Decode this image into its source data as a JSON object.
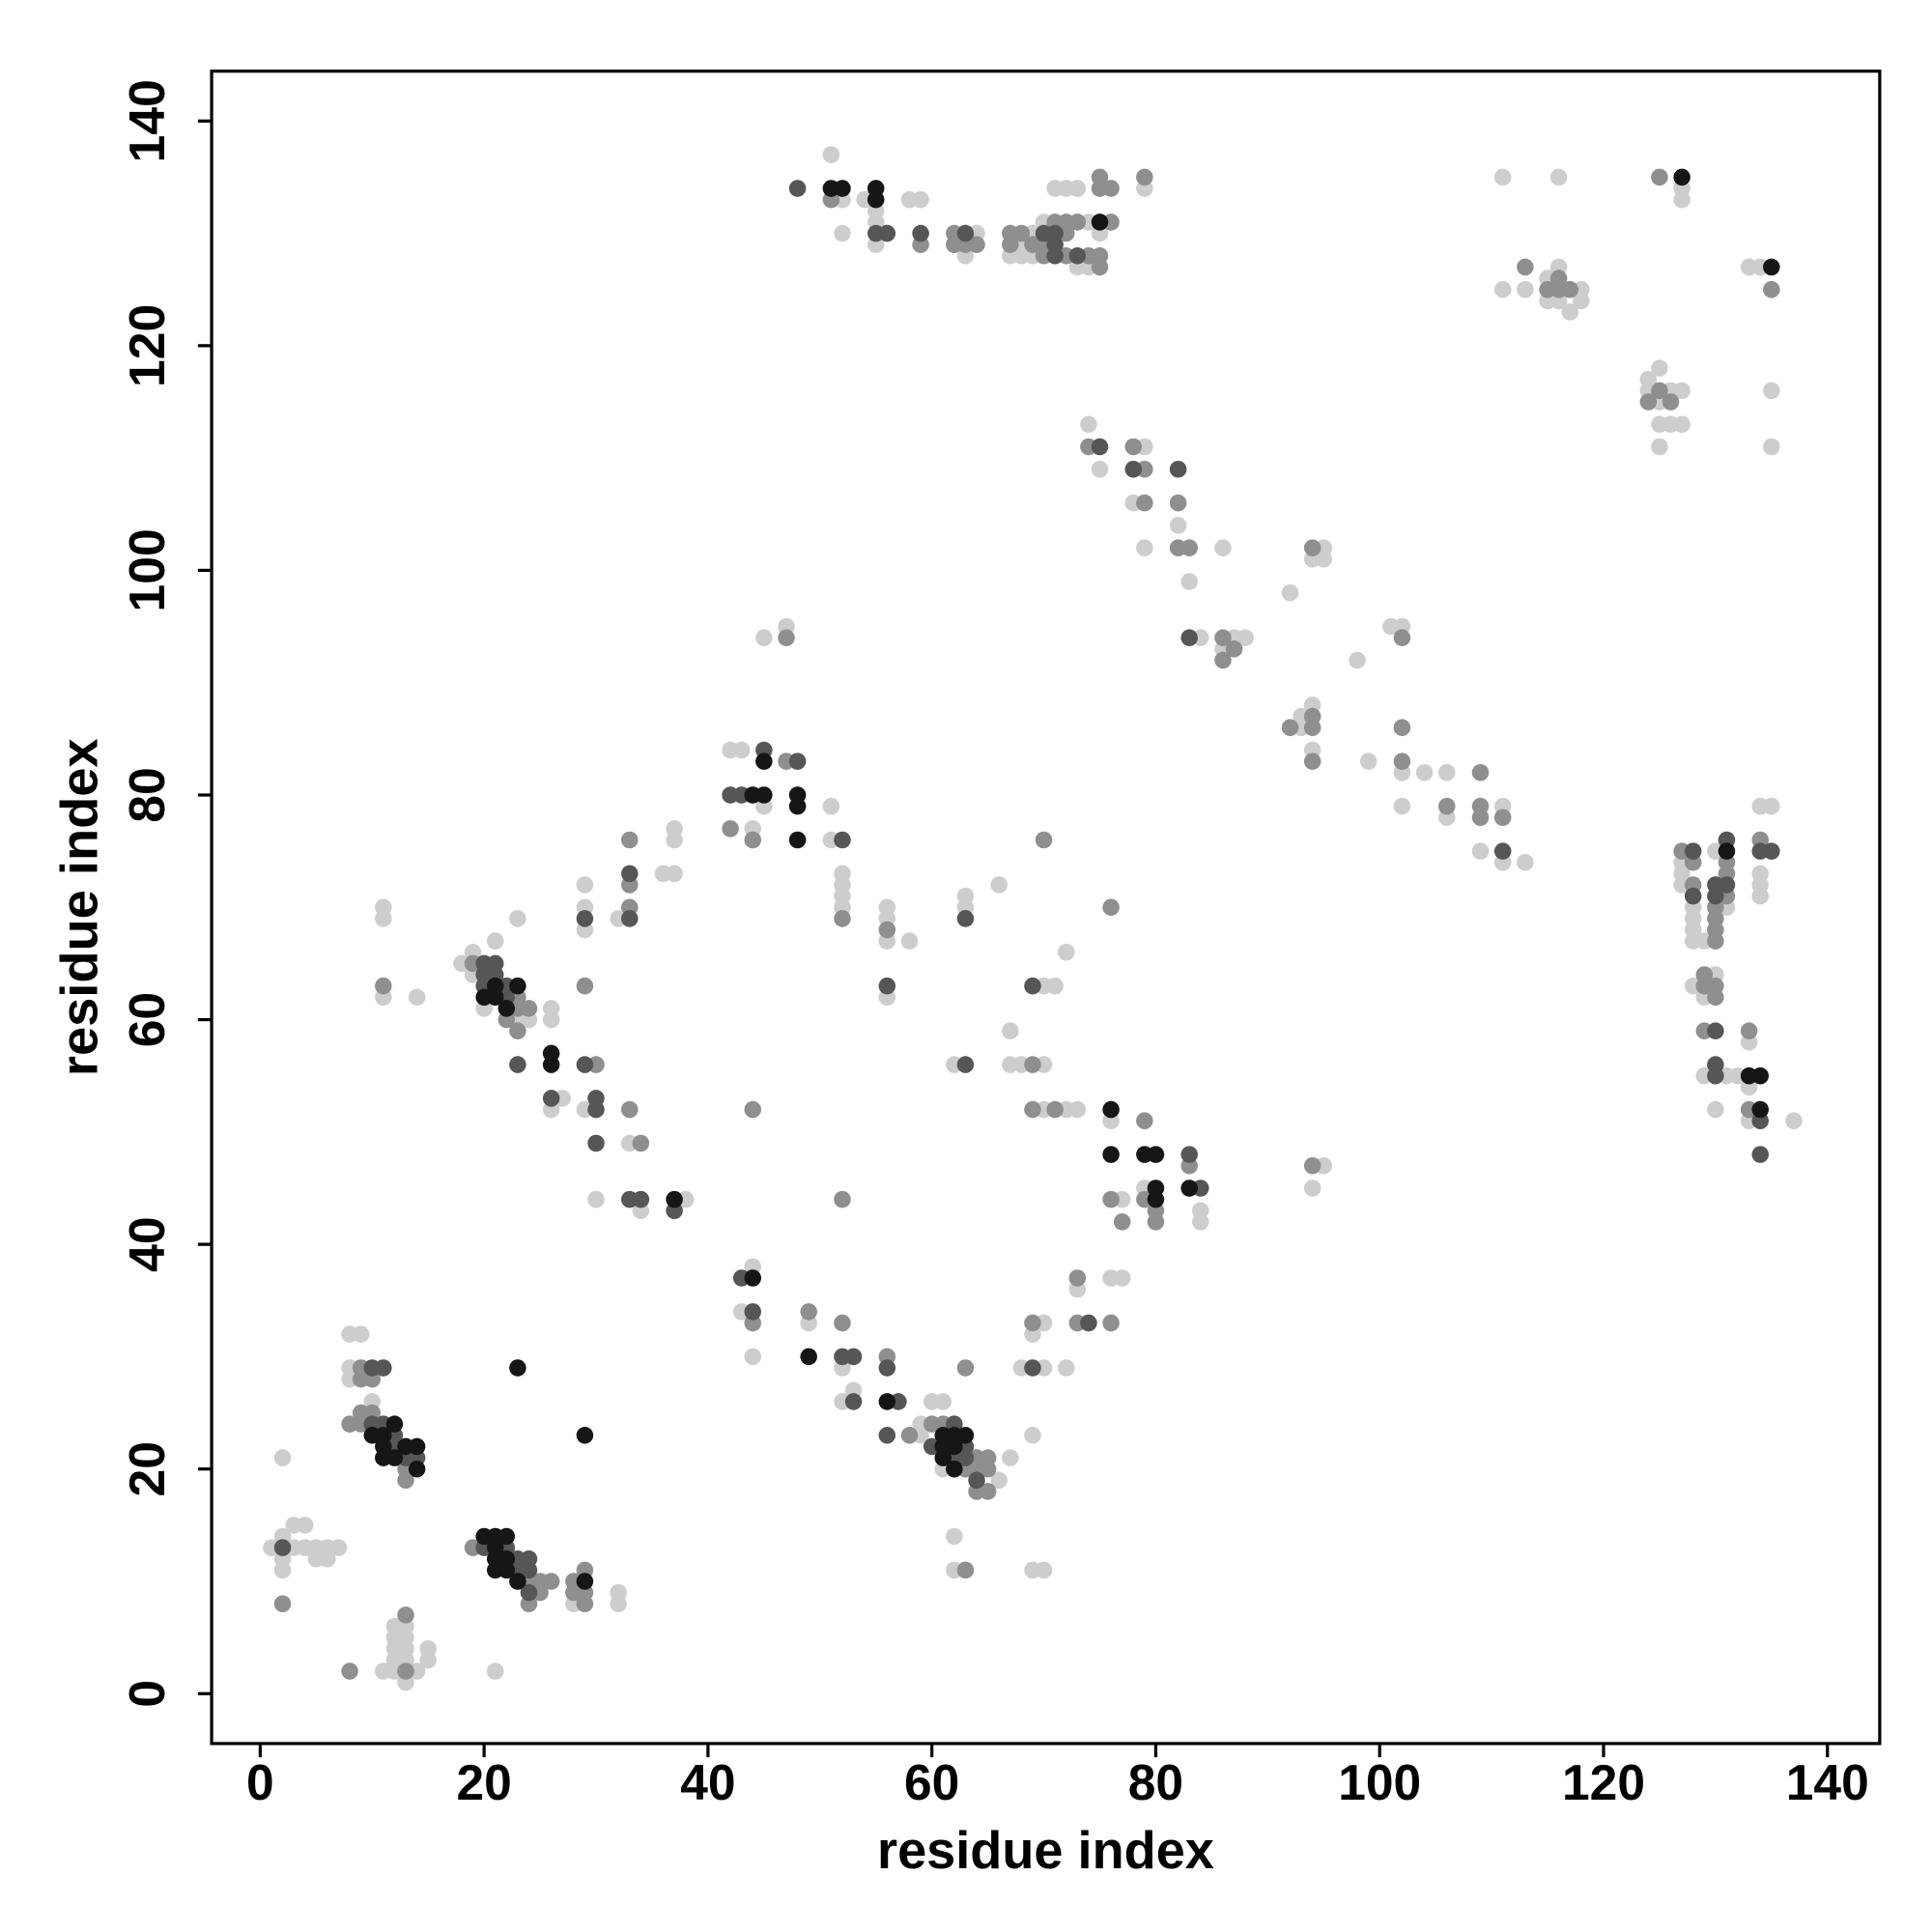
{
  "chart_data": {
    "type": "scatter",
    "xlabel": "residue index",
    "ylabel": "residue index",
    "xlim": [
      -4.34,
      144.67
    ],
    "ylim": [
      -4.44,
      144.44
    ],
    "xticks": [
      0,
      20,
      40,
      60,
      80,
      100,
      120,
      140
    ],
    "yticks": [
      0,
      20,
      40,
      60,
      80,
      100,
      120,
      140
    ],
    "series": [
      {
        "color": "#cdcdcd",
        "x": [
          1,
          2,
          2,
          3,
          4,
          3,
          4,
          5,
          6,
          5,
          6,
          7,
          2,
          2,
          8,
          9,
          8,
          8,
          10,
          11,
          12,
          12,
          12,
          12,
          12,
          13,
          13,
          13,
          13,
          13,
          14,
          15,
          15,
          21,
          28,
          32,
          32,
          18,
          19,
          19,
          21,
          20,
          23,
          23,
          24,
          26,
          26,
          26,
          27,
          29,
          30,
          33,
          34,
          38,
          11,
          11,
          11,
          14,
          29,
          29,
          29,
          32,
          36,
          37,
          37,
          37,
          42,
          43,
          45,
          44,
          45,
          47,
          51,
          51,
          52,
          52,
          52,
          52,
          44,
          43,
          44,
          49,
          52,
          53,
          52,
          59,
          59,
          60,
          61,
          66,
          61,
          62,
          62,
          67,
          68,
          69,
          70,
          70,
          72,
          69,
          69,
          70,
          73,
          76,
          77,
          76,
          77,
          79,
          84,
          84,
          95,
          94,
          62,
          67,
          67,
          68,
          70,
          70,
          72,
          73,
          70,
          71,
          72,
          66,
          63,
          63,
          56,
          56,
          56,
          58,
          56,
          51,
          52,
          52,
          54,
          55,
          55,
          55,
          58,
          59,
          63,
          64,
          67,
          68,
          68,
          69,
          69,
          70,
          71,
          72,
          73,
          73,
          74,
          74,
          79,
          75,
          74,
          75,
          78,
          79,
          79,
          82,
          83,
          84,
          86,
          86,
          87,
          88,
          92,
          94,
          95,
          95,
          98,
          93,
          94,
          93,
          94,
          99,
          101,
          102,
          102,
          102,
          104,
          106,
          106,
          109,
          111,
          111,
          113,
          111,
          116,
          111,
          113,
          115,
          115,
          116,
          116,
          117,
          118,
          118,
          127,
          127,
          133,
          134,
          135,
          135,
          124,
          125,
          124,
          125,
          126,
          125,
          126,
          127,
          127,
          125,
          127,
          127,
          127,
          128,
          128,
          128,
          128,
          129,
          130,
          131,
          128,
          129,
          130,
          129,
          130,
          131,
          132,
          133,
          133,
          133,
          137,
          134,
          135,
          134,
          134,
          134
        ],
        "values": [
          13,
          14,
          12,
          15,
          15,
          13,
          13,
          13,
          13,
          12,
          12,
          13,
          11,
          21,
          32,
          32,
          29,
          28,
          26,
          2,
          2,
          3,
          4,
          5,
          6,
          6,
          5,
          4,
          3,
          1,
          2,
          3,
          4,
          2,
          8,
          9,
          8,
          65,
          66,
          64,
          67,
          61,
          60,
          69,
          60,
          61,
          60,
          52,
          53,
          52,
          44,
          49,
          43,
          44,
          70,
          69,
          62,
          62,
          72,
          70,
          68,
          69,
          73,
          73,
          77,
          76,
          84,
          84,
          79,
          77,
          94,
          95,
          79,
          76,
          73,
          72,
          71,
          70,
          38,
          34,
          30,
          33,
          29,
          27,
          26,
          24,
          23,
          26,
          26,
          19,
          20,
          14,
          11,
          21,
          29,
          32,
          33,
          29,
          29,
          23,
          11,
          11,
          36,
          37,
          37,
          51,
          44,
          45,
          43,
          42,
          47,
          45,
          56,
          59,
          56,
          56,
          56,
          52,
          52,
          52,
          63,
          63,
          66,
          72,
          71,
          70,
          70,
          69,
          67,
          67,
          62,
          137,
          133,
          130,
          133,
          132,
          131,
          129,
          133,
          133,
          128,
          130,
          128,
          129,
          128,
          130,
          128,
          131,
          134,
          134,
          134,
          127,
          131,
          127,
          134,
          130,
          113,
          109,
          106,
          111,
          102,
          104,
          99,
          94,
          102,
          93,
          94,
          94,
          98,
          101,
          102,
          101,
          92,
          87,
          88,
          86,
          84,
          83,
          95,
          95,
          82,
          79,
          82,
          82,
          78,
          75,
          79,
          74,
          74,
          135,
          135,
          125,
          125,
          126,
          124,
          127,
          124,
          123,
          125,
          124,
          134,
          133,
          127,
          127,
          116,
          111,
          117,
          118,
          116,
          115,
          116,
          113,
          113,
          116,
          113,
          111,
          74,
          73,
          72,
          70,
          69,
          68,
          67,
          67,
          75,
          70,
          63,
          62,
          64,
          55,
          52,
          55,
          55,
          58,
          54,
          51,
          51,
          79,
          79,
          73,
          72,
          71
        ]
      },
      {
        "color": "#8f8f8f",
        "x": [
          2,
          9,
          9,
          10,
          8,
          9,
          9,
          10,
          13,
          13,
          8,
          13,
          13,
          19,
          24,
          24,
          25,
          25,
          26,
          28,
          28,
          29,
          29,
          29,
          19,
          22,
          23,
          23,
          23,
          24,
          30,
          29,
          33,
          34,
          11,
          33,
          33,
          33,
          42,
          44,
          47,
          47,
          44,
          52,
          52,
          44,
          49,
          52,
          56,
          58,
          60,
          61,
          63,
          64,
          64,
          64,
          65,
          65,
          65,
          63,
          63,
          69,
          73,
          73,
          76,
          76,
          77,
          79,
          79,
          80,
          80,
          83,
          94,
          69,
          69,
          71,
          70,
          76,
          56,
          51,
          59,
          62,
          62,
          63,
          64,
          67,
          67,
          68,
          69,
          70,
          70,
          71,
          72,
          72,
          72,
          73,
          74,
          75,
          75,
          75,
          75,
          76,
          76,
          79,
          74,
          78,
          79,
          79,
          82,
          82,
          83,
          86,
          86,
          87,
          94,
          92,
          94,
          94,
          94,
          102,
          102,
          102,
          106,
          109,
          109,
          109,
          111,
          113,
          115,
          116,
          116,
          117,
          125,
          135,
          125,
          124,
          126,
          127,
          128,
          128,
          130,
          130,
          130,
          130,
          131,
          131,
          131,
          129,
          129,
          130,
          130,
          129,
          133,
          133,
          134
        ],
        "values": [
          8,
          29,
          28,
          28,
          24,
          25,
          24,
          25,
          20,
          19,
          2,
          7,
          2,
          13,
          10,
          8,
          10,
          9,
          10,
          10,
          9,
          11,
          9,
          8,
          65,
          60,
          62,
          61,
          59,
          61,
          56,
          63,
          52,
          49,
          63,
          76,
          72,
          70,
          77,
          76,
          83,
          94,
          52,
          69,
          44,
          33,
          34,
          33,
          30,
          23,
          24,
          24,
          20,
          21,
          20,
          18,
          21,
          20,
          18,
          29,
          11,
          33,
          37,
          33,
          33,
          44,
          42,
          51,
          44,
          43,
          42,
          47,
          47,
          56,
          52,
          52,
          76,
          70,
          68,
          133,
          129,
          130,
          129,
          129,
          129,
          130,
          129,
          130,
          129,
          129,
          128,
          131,
          131,
          130,
          128,
          131,
          128,
          135,
          134,
          128,
          127,
          134,
          131,
          135,
          111,
          111,
          109,
          106,
          106,
          102,
          102,
          94,
          92,
          93,
          102,
          86,
          87,
          86,
          83,
          94,
          86,
          83,
          79,
          82,
          79,
          78,
          78,
          127,
          125,
          126,
          125,
          125,
          135,
          125,
          116,
          115,
          115,
          75,
          74,
          72,
          70,
          69,
          68,
          67,
          74,
          73,
          71,
          64,
          63,
          63,
          62,
          59,
          59,
          52,
          76
        ]
      },
      {
        "color": "#565656",
        "x": [
          2,
          10,
          11,
          10,
          12,
          13,
          14,
          12,
          11,
          20,
          22,
          23,
          23,
          24,
          24,
          24,
          20,
          20,
          20,
          21,
          21,
          22,
          22,
          23,
          26,
          29,
          30,
          30,
          30,
          33,
          34,
          37,
          29,
          33,
          33,
          42,
          43,
          45,
          48,
          52,
          43,
          44,
          52,
          53,
          53,
          56,
          57,
          56,
          60,
          62,
          62,
          63,
          63,
          64,
          69,
          74,
          83,
          84,
          63,
          69,
          63,
          56,
          48,
          55,
          56,
          59,
          63,
          70,
          71,
          71,
          71,
          73,
          75,
          78,
          82,
          83,
          111,
          128,
          128,
          130,
          130,
          131,
          131,
          130,
          130,
          130,
          134,
          134,
          134,
          135
        ],
        "values": [
          13,
          29,
          29,
          24,
          22,
          21,
          21,
          23,
          24,
          13,
          13,
          12,
          11,
          12,
          11,
          9,
          65,
          64,
          63,
          65,
          64,
          63,
          62,
          56,
          53,
          56,
          53,
          52,
          49,
          44,
          44,
          43,
          69,
          73,
          69,
          80,
          80,
          84,
          83,
          76,
          37,
          34,
          30,
          30,
          26,
          29,
          26,
          23,
          22,
          24,
          21,
          22,
          21,
          19,
          29,
          33,
          48,
          45,
          56,
          63,
          69,
          63,
          134,
          130,
          130,
          130,
          130,
          130,
          130,
          129,
          128,
          128,
          111,
          109,
          109,
          94,
          75,
          75,
          71,
          72,
          71,
          76,
          72,
          59,
          56,
          55,
          51,
          48,
          75,
          75
        ]
      },
      {
        "color": "#161616",
        "x": [
          10,
          11,
          11,
          11,
          12,
          12,
          13,
          14,
          14,
          20,
          21,
          21,
          21,
          21,
          22,
          22,
          22,
          23,
          29,
          23,
          29,
          20,
          21,
          21,
          22,
          23,
          26,
          26,
          37,
          44,
          45,
          45,
          48,
          48,
          48,
          44,
          49,
          56,
          61,
          61,
          61,
          62,
          62,
          62,
          63,
          76,
          76,
          79,
          80,
          80,
          80,
          83,
          51,
          52,
          55,
          55,
          75,
          127,
          135,
          131,
          133,
          134,
          134
        ],
        "values": [
          23,
          23,
          22,
          21,
          24,
          21,
          22,
          22,
          20,
          14,
          14,
          13,
          12,
          11,
          14,
          12,
          11,
          10,
          10,
          29,
          23,
          62,
          63,
          62,
          61,
          63,
          57,
          56,
          44,
          80,
          83,
          80,
          80,
          79,
          76,
          37,
          30,
          26,
          22,
          23,
          21,
          23,
          22,
          20,
          23,
          48,
          52,
          48,
          48,
          45,
          44,
          45,
          134,
          134,
          134,
          133,
          131,
          135,
          127,
          75,
          55,
          55,
          52
        ]
      }
    ]
  }
}
